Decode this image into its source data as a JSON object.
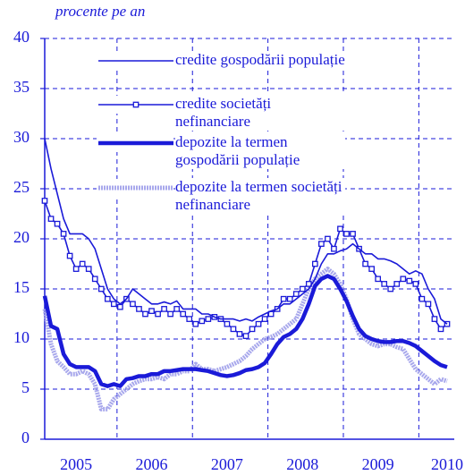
{
  "chart_data": {
    "type": "line",
    "ylabel": "procente pe an",
    "categories": [
      null,
      null,
      null,
      null,
      null,
      "2005",
      null,
      null,
      null,
      null,
      null,
      null,
      null,
      null,
      null,
      null,
      null,
      "2006",
      null,
      null,
      null,
      null,
      null,
      null,
      null,
      null,
      null,
      null,
      null,
      "2007",
      null,
      null,
      null,
      null,
      null,
      null,
      null,
      null,
      null,
      null,
      null,
      "2008",
      null,
      null,
      null,
      null,
      null,
      null,
      null,
      null,
      null,
      null,
      null,
      "2009",
      null,
      null,
      null,
      null,
      null,
      null,
      null,
      null,
      null,
      null,
      "2010"
    ],
    "ylim": [
      0,
      40
    ],
    "yticks": [
      0,
      5,
      10,
      15,
      20,
      25,
      30,
      35,
      40
    ],
    "grid": true,
    "series": [
      {
        "name": "credite gospodării populație",
        "color": "#1a1ad8",
        "width": 1.6,
        "marker": "none",
        "style": "solid",
        "values": [
          30,
          27,
          24.5,
          22,
          20.5,
          20.5,
          20.5,
          20,
          19,
          17,
          15,
          14,
          13.5,
          14,
          15,
          14.5,
          14,
          13.5,
          13.5,
          13.7,
          13.5,
          13.8,
          13,
          13,
          13,
          12.5,
          12.5,
          12.2,
          12,
          12,
          12,
          11.8,
          12,
          11.8,
          12.2,
          12.5,
          12.8,
          13,
          13.5,
          13.5,
          14,
          14.5,
          15,
          16,
          17.5,
          18.5,
          18.5,
          18.8,
          19,
          19.5,
          19,
          18.5,
          18.5,
          18,
          18,
          17.8,
          17.5,
          17,
          16.5,
          16.8,
          16.5,
          15,
          14,
          12,
          11.5
        ]
      },
      {
        "name": "credite societăți nefinanciare",
        "color": "#1a1ad8",
        "width": 1.6,
        "marker": "square",
        "style": "solid",
        "values": [
          23.8,
          22,
          21.5,
          20.5,
          18.3,
          17,
          17.5,
          17,
          16,
          15,
          14,
          13.5,
          13.2,
          14,
          13.5,
          13,
          12.5,
          12.8,
          12.5,
          13,
          12.5,
          13,
          12.5,
          12,
          11.5,
          11.8,
          12,
          12.2,
          12,
          11.5,
          11,
          10.5,
          10.3,
          11,
          11.5,
          12,
          12.5,
          13,
          14,
          14,
          14.5,
          15,
          15.5,
          17.5,
          19.5,
          20,
          19,
          21,
          20.5,
          20.5,
          19,
          17.5,
          17,
          16,
          15.5,
          15,
          15.5,
          16,
          15.8,
          15.5,
          14,
          13.5,
          12,
          11,
          11.5
        ]
      },
      {
        "name": "depozite la termen gospodării populație",
        "color": "#1a1ad8",
        "width": 4.5,
        "marker": "none",
        "style": "solid",
        "values": [
          14.3,
          11.3,
          11,
          8.5,
          7.5,
          7.2,
          7.2,
          7.2,
          6.8,
          5.5,
          5.3,
          5.5,
          5.3,
          6,
          6.1,
          6.3,
          6.3,
          6.5,
          6.5,
          6.8,
          6.8,
          6.9,
          7,
          7,
          7,
          6.9,
          6.8,
          6.6,
          6.4,
          6.3,
          6.4,
          6.6,
          6.9,
          7,
          7.2,
          7.6,
          8.5,
          9.5,
          10.2,
          10.5,
          11,
          12,
          13.5,
          15.3,
          16,
          16.3,
          16,
          15,
          13.8,
          12.3,
          11,
          10.3,
          10,
          9.8,
          9.7,
          9.7,
          9.8,
          9.8,
          9.6,
          9.3,
          8.8,
          8.3,
          7.8,
          7.4,
          7.2
        ]
      },
      {
        "name": "depozite la termen societăți nefinanciare",
        "color": "#a8a8ec",
        "width": 5,
        "marker": "none",
        "style": "hatched",
        "values": [
          13,
          9.5,
          7.8,
          7.2,
          6.5,
          6.5,
          6.8,
          6.5,
          5.5,
          3,
          3,
          4,
          4.5,
          5,
          5.5,
          5.8,
          6,
          6,
          6.2,
          6,
          6.5,
          6.5,
          6.8,
          6.8,
          7.5,
          7,
          7,
          6.8,
          7,
          7.2,
          7.5,
          7.8,
          8.3,
          9,
          9.5,
          10,
          10.2,
          10.5,
          11,
          11.5,
          12,
          13.5,
          15,
          16,
          16.5,
          17,
          16.5,
          15.5,
          14,
          12,
          10.5,
          10,
          9.5,
          9.3,
          9.5,
          9.5,
          9.2,
          9,
          8,
          7,
          6.5,
          6,
          5.5,
          6,
          5.8
        ]
      }
    ]
  }
}
